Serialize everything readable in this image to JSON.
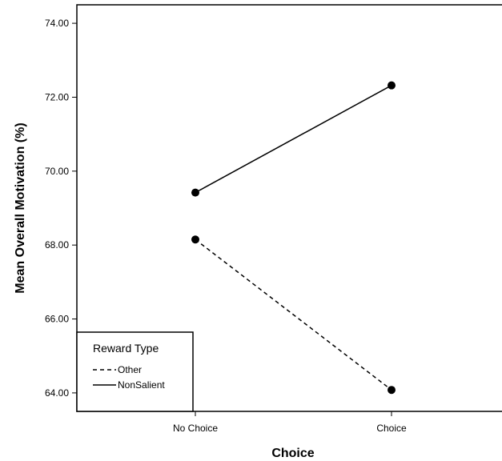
{
  "chart_data": {
    "type": "line",
    "categories": [
      "No Choice",
      "Choice"
    ],
    "xlabel": "Choice",
    "ylabel": "Mean Overall Motivation (%)",
    "ylim": [
      63.5,
      74.5
    ],
    "y_ticks": [
      "64.00",
      "66.00",
      "68.00",
      "70.00",
      "72.00",
      "74.00"
    ],
    "grid": false,
    "legend": {
      "title": "Reward Type",
      "placement": "bottom-left"
    },
    "series": [
      {
        "name": "Other",
        "values": [
          68.15,
          64.08
        ],
        "line_style": "dashed",
        "color": "#000000"
      },
      {
        "name": "NonSalient",
        "values": [
          69.42,
          72.32
        ],
        "line_style": "solid",
        "color": "#000000"
      }
    ]
  }
}
